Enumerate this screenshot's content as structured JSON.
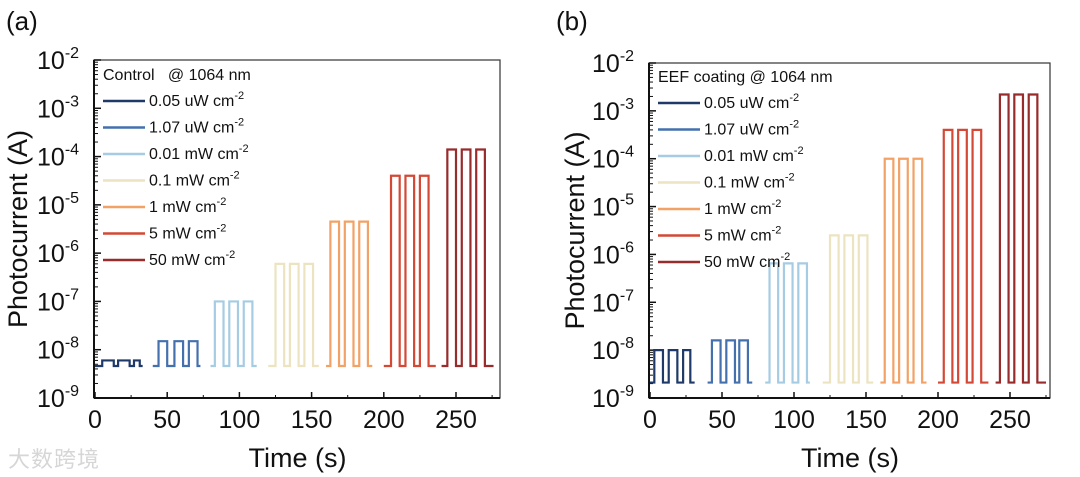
{
  "watermark": "大数跨境",
  "chart_data": [
    {
      "type": "line",
      "panel_label": "(a)",
      "title": "Control   @ 1064 nm",
      "xlabel": "Time (s)",
      "ylabel": "Photocurrent (A)",
      "xlim": [
        0,
        280
      ],
      "ylim_log10": [
        -9,
        -2
      ],
      "yscale": "log",
      "xticks": [
        "0",
        "50",
        "100",
        "150",
        "200",
        "250"
      ],
      "xtick_values": [
        0,
        50,
        100,
        150,
        200,
        250
      ],
      "yticks": [
        {
          "base": "10",
          "exp": "-9"
        },
        {
          "base": "10",
          "exp": "-8"
        },
        {
          "base": "10",
          "exp": "-7"
        },
        {
          "base": "10",
          "exp": "-6"
        },
        {
          "base": "10",
          "exp": "-5"
        },
        {
          "base": "10",
          "exp": "-4"
        },
        {
          "base": "10",
          "exp": "-3"
        },
        {
          "base": "10",
          "exp": "-2"
        }
      ],
      "legend_position": "top-left",
      "series": [
        {
          "name": "0.05 uW cm",
          "sup": "-2",
          "color": "#1f3a68",
          "t_start": 0,
          "t_end": 33,
          "baseline": 4.6e-09,
          "peak": 6e-09,
          "pulses": [
            [
              5,
              13
            ],
            [
              16,
              24
            ],
            [
              27,
              31
            ]
          ]
        },
        {
          "name": "1.07 uW cm",
          "sup": "-2",
          "color": "#4470ad",
          "t_start": 40,
          "t_end": 73,
          "baseline": 4.6e-09,
          "peak": 1.5e-08,
          "pulses": [
            [
              44,
              50
            ],
            [
              55,
              61
            ],
            [
              65,
              71
            ]
          ]
        },
        {
          "name": "0.01 mW cm",
          "sup": "-2",
          "color": "#a6cce4",
          "t_start": 80,
          "t_end": 112,
          "baseline": 4.6e-09,
          "peak": 1e-07,
          "pulses": [
            [
              83,
              89
            ],
            [
              93,
              99
            ],
            [
              103,
              109
            ]
          ]
        },
        {
          "name": "0.1 mW cm",
          "sup": "-2",
          "color": "#ece4c0",
          "t_start": 120,
          "t_end": 155,
          "baseline": 4.6e-09,
          "peak": 6e-07,
          "pulses": [
            [
              125,
              131
            ],
            [
              135,
              141
            ],
            [
              145,
              151
            ]
          ]
        },
        {
          "name": "1 mW cm",
          "sup": "-2",
          "color": "#f2a266",
          "t_start": 160,
          "t_end": 192,
          "baseline": 4.6e-09,
          "peak": 4.5e-06,
          "pulses": [
            [
              163,
              169
            ],
            [
              173,
              179
            ],
            [
              183,
              189
            ]
          ]
        },
        {
          "name": "5 mW cm",
          "sup": "-2",
          "color": "#d44836",
          "t_start": 200,
          "t_end": 236,
          "baseline": 4.6e-09,
          "peak": 4e-05,
          "pulses": [
            [
              205,
              211
            ],
            [
              215,
              221
            ],
            [
              225,
              231
            ]
          ]
        },
        {
          "name": "50 mW cm",
          "sup": "-2",
          "color": "#982b2b",
          "t_start": 240,
          "t_end": 276,
          "baseline": 4.6e-09,
          "peak": 0.00014,
          "pulses": [
            [
              244,
              250
            ],
            [
              254,
              260
            ],
            [
              264,
              270
            ]
          ]
        }
      ]
    },
    {
      "type": "line",
      "panel_label": "(b)",
      "title": "EEF coating @ 1064 nm",
      "xlabel": "Time (s)",
      "ylabel": "Photocurrent (A)",
      "xlim": [
        0,
        278
      ],
      "ylim_log10": [
        -9,
        -2
      ],
      "yscale": "log",
      "xticks": [
        "0",
        "50",
        "100",
        "150",
        "200",
        "250"
      ],
      "xtick_values": [
        0,
        50,
        100,
        150,
        200,
        250
      ],
      "yticks": [
        {
          "base": "10",
          "exp": "-9"
        },
        {
          "base": "10",
          "exp": "-8"
        },
        {
          "base": "10",
          "exp": "-7"
        },
        {
          "base": "10",
          "exp": "-6"
        },
        {
          "base": "10",
          "exp": "-5"
        },
        {
          "base": "10",
          "exp": "-4"
        },
        {
          "base": "10",
          "exp": "-3"
        },
        {
          "base": "10",
          "exp": "-2"
        }
      ],
      "legend_position": "top-left",
      "series": [
        {
          "name": "0.05 uW cm",
          "sup": "-2",
          "color": "#1f3a68",
          "t_start": 0,
          "t_end": 31,
          "baseline": 2.1e-09,
          "peak": 1e-08,
          "pulses": [
            [
              3,
              9
            ],
            [
              13,
              19
            ],
            [
              23,
              28
            ]
          ]
        },
        {
          "name": "1.07 uW cm",
          "sup": "-2",
          "color": "#4470ad",
          "t_start": 40,
          "t_end": 71,
          "baseline": 2.1e-09,
          "peak": 1.6e-08,
          "pulses": [
            [
              43,
              49
            ],
            [
              53,
              59
            ],
            [
              62,
              68
            ]
          ]
        },
        {
          "name": "0.01 mW cm",
          "sup": "-2",
          "color": "#a6cce4",
          "t_start": 80,
          "t_end": 111,
          "baseline": 2.1e-09,
          "peak": 6.5e-07,
          "pulses": [
            [
              83,
              89
            ],
            [
              93,
              99
            ],
            [
              103,
              109
            ]
          ]
        },
        {
          "name": "0.1 mW cm",
          "sup": "-2",
          "color": "#ece4c0",
          "t_start": 120,
          "t_end": 155,
          "baseline": 2.1e-09,
          "peak": 2.5e-06,
          "pulses": [
            [
              125,
              131
            ],
            [
              135,
              141
            ],
            [
              145,
              151
            ]
          ]
        },
        {
          "name": "1 mW cm",
          "sup": "-2",
          "color": "#f2a266",
          "t_start": 160,
          "t_end": 192,
          "baseline": 2.1e-09,
          "peak": 0.0001,
          "pulses": [
            [
              163,
              169
            ],
            [
              173,
              179
            ],
            [
              183,
              189
            ]
          ]
        },
        {
          "name": "5 mW cm",
          "sup": "-2",
          "color": "#d44836",
          "t_start": 200,
          "t_end": 235,
          "baseline": 2.1e-09,
          "peak": 0.0004,
          "pulses": [
            [
              204,
              210
            ],
            [
              214,
              220
            ],
            [
              224,
              230
            ]
          ]
        },
        {
          "name": "50 mW cm",
          "sup": "-2",
          "color": "#982b2b",
          "t_start": 240,
          "t_end": 275,
          "baseline": 2.1e-09,
          "peak": 0.0022,
          "pulses": [
            [
              243,
              249
            ],
            [
              253,
              259
            ],
            [
              263,
              269
            ]
          ]
        }
      ]
    }
  ]
}
